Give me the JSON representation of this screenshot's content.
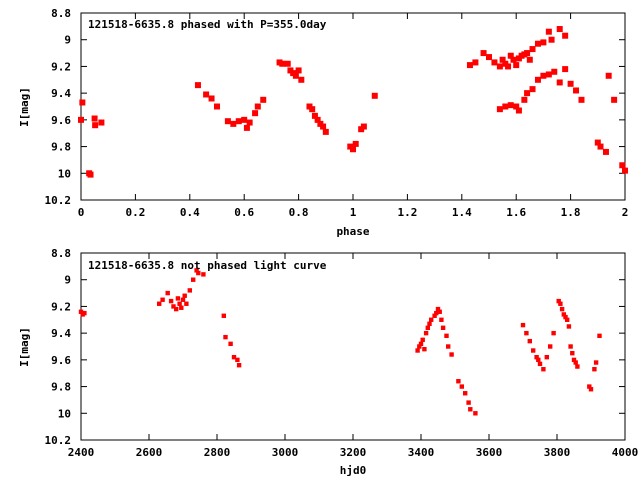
{
  "chart_data": [
    {
      "type": "scatter",
      "title": "121518-6635.8 phased with P=355.0day",
      "xlabel": "phase",
      "ylabel": "I[mag]",
      "xlim": [
        0,
        2
      ],
      "ylim": [
        10.2,
        8.8
      ],
      "y_inverted": true,
      "grid": false,
      "marker_color": "#ff0000",
      "xticks": [
        "0",
        "0.2",
        "0.4",
        "0.6",
        "0.8",
        "1",
        "1.2",
        "1.4",
        "1.6",
        "1.8",
        "2"
      ],
      "yticks": [
        "8.8",
        "9",
        "9.2",
        "9.4",
        "9.6",
        "9.8",
        "10",
        "10.2"
      ],
      "xtick_values": [
        0,
        0.2,
        0.4,
        0.6,
        0.8,
        1.0,
        1.2,
        1.4,
        1.6,
        1.8,
        2.0
      ],
      "ytick_values": [
        8.8,
        9.0,
        9.2,
        9.4,
        9.6,
        9.8,
        10.0,
        10.2
      ],
      "series": [
        {
          "x": [
            0.0,
            0.005,
            0.03,
            0.035,
            0.05,
            0.052,
            0.075,
            0.43,
            0.46,
            0.48,
            0.5,
            0.54,
            0.56,
            0.58,
            0.6,
            0.61,
            0.62,
            0.64,
            0.65,
            0.67,
            0.73,
            0.74,
            0.76,
            0.77,
            0.78,
            0.79,
            0.8,
            0.81,
            0.84,
            0.85,
            0.86,
            0.87,
            0.88,
            0.89,
            0.9,
            0.99,
            1.0,
            1.01,
            1.03,
            1.04,
            1.08,
            1.43,
            1.45,
            1.48,
            1.5,
            1.52,
            1.54,
            1.55,
            1.56,
            1.57,
            1.58,
            1.59,
            1.6,
            1.61,
            1.62,
            1.63,
            1.64,
            1.65,
            1.66,
            1.68,
            1.7,
            1.72,
            1.73,
            1.76,
            1.78,
            1.54,
            1.56,
            1.58,
            1.6,
            1.61,
            1.63,
            1.64,
            1.66,
            1.68,
            1.7,
            1.72,
            1.74,
            1.76,
            1.78,
            1.8,
            1.82,
            1.84,
            1.9,
            1.91,
            1.93,
            1.94,
            1.96,
            1.99,
            2.0
          ],
          "y": [
            9.6,
            9.47,
            10.0,
            10.01,
            9.59,
            9.64,
            9.62,
            9.34,
            9.41,
            9.44,
            9.5,
            9.61,
            9.63,
            9.61,
            9.6,
            9.66,
            9.62,
            9.55,
            9.5,
            9.45,
            9.17,
            9.18,
            9.18,
            9.23,
            9.25,
            9.27,
            9.23,
            9.3,
            9.5,
            9.52,
            9.57,
            9.6,
            9.63,
            9.65,
            9.69,
            9.8,
            9.82,
            9.78,
            9.67,
            9.65,
            9.42,
            9.19,
            9.17,
            9.1,
            9.13,
            9.17,
            9.2,
            9.15,
            9.18,
            9.2,
            9.12,
            9.15,
            9.19,
            9.14,
            9.12,
            9.11,
            9.1,
            9.15,
            9.07,
            9.03,
            9.02,
            8.94,
            9.0,
            8.92,
            8.97,
            9.52,
            9.5,
            9.49,
            9.5,
            9.53,
            9.45,
            9.4,
            9.37,
            9.3,
            9.27,
            9.26,
            9.24,
            9.32,
            9.22,
            9.33,
            9.38,
            9.45,
            9.77,
            9.8,
            9.84,
            9.27,
            9.45,
            9.94,
            9.98
          ]
        }
      ]
    },
    {
      "type": "scatter",
      "title": "121518-6635.8 not phased light curve",
      "xlabel": "hjd0",
      "ylabel": "I[mag]",
      "xlim": [
        2400,
        4000
      ],
      "ylim": [
        10.2,
        8.8
      ],
      "y_inverted": true,
      "grid": false,
      "marker_color": "#ff0000",
      "xticks": [
        "2400",
        "2600",
        "2800",
        "3000",
        "3200",
        "3400",
        "3600",
        "3800",
        "4000"
      ],
      "yticks": [
        "8.8",
        "9",
        "9.2",
        "9.4",
        "9.6",
        "9.8",
        "10",
        "10.2"
      ],
      "xtick_values": [
        2400,
        2600,
        2800,
        3000,
        3200,
        3400,
        3600,
        3800,
        4000
      ],
      "ytick_values": [
        8.8,
        9.0,
        9.2,
        9.4,
        9.6,
        9.8,
        10.0,
        10.2
      ],
      "series": [
        {
          "x": [
            2400,
            2405,
            2410,
            2630,
            2640,
            2655,
            2665,
            2672,
            2680,
            2685,
            2690,
            2695,
            2700,
            2705,
            2710,
            2720,
            2730,
            2740,
            2745,
            2760,
            2820,
            2825,
            2840,
            2850,
            2860,
            2865,
            3390,
            3395,
            3400,
            3405,
            3410,
            3415,
            3420,
            3425,
            3430,
            3440,
            3445,
            3450,
            3455,
            3460,
            3465,
            3475,
            3480,
            3490,
            3510,
            3520,
            3530,
            3540,
            3545,
            3560,
            3700,
            3710,
            3720,
            3730,
            3740,
            3745,
            3750,
            3760,
            3770,
            3780,
            3790,
            3805,
            3810,
            3815,
            3820,
            3825,
            3830,
            3835,
            3840,
            3845,
            3850,
            3855,
            3860,
            3895,
            3900,
            3910,
            3915,
            3925
          ],
          "y": [
            9.24,
            9.26,
            9.25,
            9.18,
            9.15,
            9.1,
            9.16,
            9.2,
            9.22,
            9.14,
            9.18,
            9.21,
            9.15,
            9.12,
            9.18,
            9.08,
            9.0,
            8.93,
            8.95,
            8.96,
            9.27,
            9.43,
            9.48,
            9.58,
            9.6,
            9.64,
            9.53,
            9.5,
            9.48,
            9.45,
            9.52,
            9.4,
            9.36,
            9.33,
            9.3,
            9.27,
            9.25,
            9.22,
            9.24,
            9.3,
            9.36,
            9.42,
            9.5,
            9.56,
            9.76,
            9.8,
            9.85,
            9.92,
            9.97,
            10.0,
            9.34,
            9.4,
            9.46,
            9.53,
            9.58,
            9.6,
            9.63,
            9.67,
            9.58,
            9.5,
            9.4,
            9.16,
            9.18,
            9.22,
            9.26,
            9.28,
            9.3,
            9.35,
            9.5,
            9.55,
            9.6,
            9.62,
            9.65,
            9.8,
            9.82,
            9.67,
            9.62,
            9.42
          ]
        }
      ]
    }
  ]
}
